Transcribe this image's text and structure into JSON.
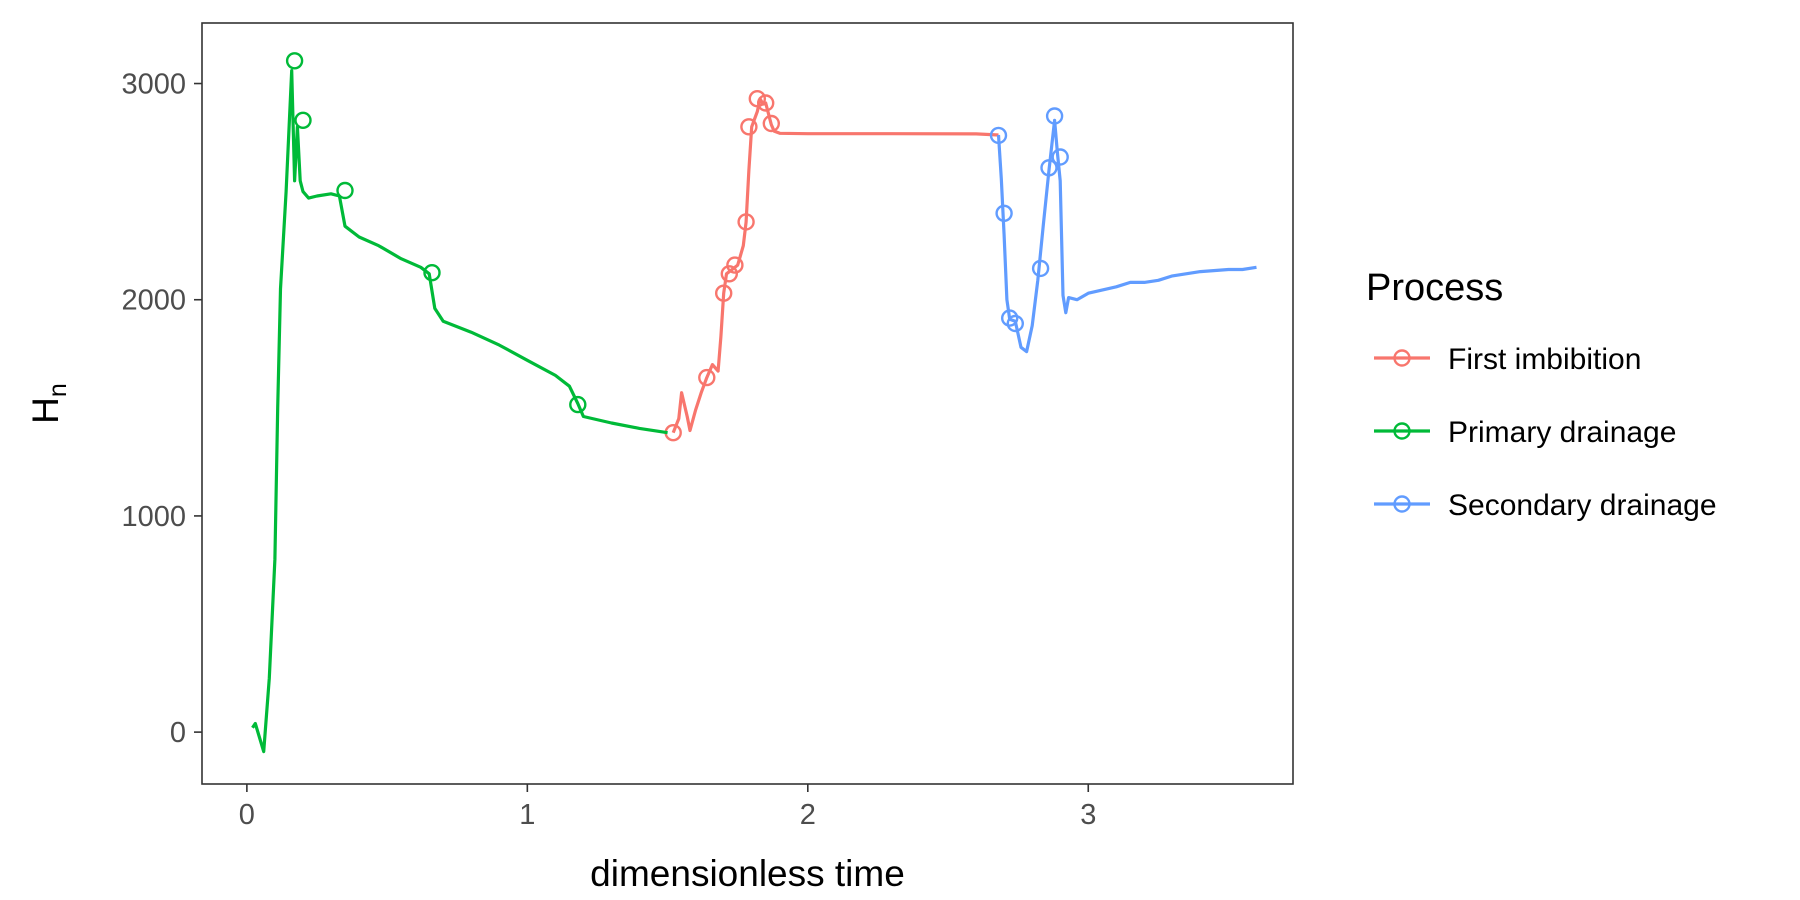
{
  "chart_data": {
    "type": "line",
    "title": "",
    "xlabel": "dimensionless time",
    "ylabel": {
      "main": "H",
      "sub": "n"
    },
    "xlim": [
      -0.16,
      3.73
    ],
    "ylim": [
      -240,
      3280
    ],
    "x_ticks": [
      0,
      1,
      2,
      3
    ],
    "y_ticks": [
      0,
      1000,
      2000,
      3000
    ],
    "grid": false,
    "legend": {
      "title": "Process",
      "position": "right"
    },
    "series": [
      {
        "name": "First imbibition",
        "color": "#F8766D",
        "line": [
          [
            1.52,
            1385
          ],
          [
            1.54,
            1450
          ],
          [
            1.55,
            1570
          ],
          [
            1.57,
            1460
          ],
          [
            1.58,
            1395
          ],
          [
            1.6,
            1490
          ],
          [
            1.62,
            1570
          ],
          [
            1.64,
            1640
          ],
          [
            1.66,
            1700
          ],
          [
            1.68,
            1670
          ],
          [
            1.69,
            1830
          ],
          [
            1.7,
            2030
          ],
          [
            1.71,
            2120
          ],
          [
            1.73,
            2140
          ],
          [
            1.75,
            2160
          ],
          [
            1.77,
            2250
          ],
          [
            1.78,
            2360
          ],
          [
            1.79,
            2600
          ],
          [
            1.8,
            2800
          ],
          [
            1.82,
            2870
          ],
          [
            1.83,
            2930
          ],
          [
            1.84,
            2905
          ],
          [
            1.85,
            2910
          ],
          [
            1.86,
            2860
          ],
          [
            1.87,
            2810
          ],
          [
            1.88,
            2780
          ],
          [
            1.9,
            2770
          ],
          [
            2.0,
            2768
          ],
          [
            2.3,
            2768
          ],
          [
            2.6,
            2767
          ],
          [
            2.68,
            2762
          ]
        ],
        "markers": [
          [
            1.52,
            1385
          ],
          [
            1.64,
            1640
          ],
          [
            1.7,
            2030
          ],
          [
            1.72,
            2120
          ],
          [
            1.74,
            2160
          ],
          [
            1.78,
            2360
          ],
          [
            1.79,
            2800
          ],
          [
            1.82,
            2930
          ],
          [
            1.85,
            2910
          ],
          [
            1.87,
            2815
          ]
        ]
      },
      {
        "name": "Primary drainage",
        "color": "#00BA38",
        "line": [
          [
            0.02,
            20
          ],
          [
            0.03,
            40
          ],
          [
            0.06,
            -90
          ],
          [
            0.08,
            250
          ],
          [
            0.1,
            800
          ],
          [
            0.11,
            1500
          ],
          [
            0.12,
            2050
          ],
          [
            0.14,
            2500
          ],
          [
            0.16,
            3060
          ],
          [
            0.17,
            2550
          ],
          [
            0.18,
            2800
          ],
          [
            0.19,
            2550
          ],
          [
            0.2,
            2500
          ],
          [
            0.22,
            2470
          ],
          [
            0.25,
            2480
          ],
          [
            0.3,
            2490
          ],
          [
            0.33,
            2480
          ],
          [
            0.35,
            2340
          ],
          [
            0.4,
            2290
          ],
          [
            0.47,
            2250
          ],
          [
            0.55,
            2190
          ],
          [
            0.62,
            2150
          ],
          [
            0.65,
            2120
          ],
          [
            0.67,
            1960
          ],
          [
            0.7,
            1900
          ],
          [
            0.8,
            1850
          ],
          [
            0.9,
            1790
          ],
          [
            1.0,
            1720
          ],
          [
            1.1,
            1650
          ],
          [
            1.15,
            1600
          ],
          [
            1.18,
            1520
          ],
          [
            1.2,
            1460
          ],
          [
            1.3,
            1430
          ],
          [
            1.4,
            1405
          ],
          [
            1.5,
            1385
          ]
        ],
        "markers": [
          [
            0.17,
            3105
          ],
          [
            0.2,
            2830
          ],
          [
            0.35,
            2505
          ],
          [
            0.66,
            2125
          ],
          [
            1.18,
            1515
          ]
        ]
      },
      {
        "name": "Secondary drainage",
        "color": "#619CFF",
        "line": [
          [
            2.68,
            2762
          ],
          [
            2.69,
            2560
          ],
          [
            2.7,
            2300
          ],
          [
            2.71,
            2000
          ],
          [
            2.72,
            1910
          ],
          [
            2.74,
            1900
          ],
          [
            2.76,
            1780
          ],
          [
            2.78,
            1760
          ],
          [
            2.8,
            1880
          ],
          [
            2.82,
            2090
          ],
          [
            2.84,
            2350
          ],
          [
            2.86,
            2600
          ],
          [
            2.88,
            2830
          ],
          [
            2.89,
            2680
          ],
          [
            2.9,
            2550
          ],
          [
            2.91,
            2020
          ],
          [
            2.92,
            1940
          ],
          [
            2.93,
            2010
          ],
          [
            2.96,
            2000
          ],
          [
            3.0,
            2030
          ],
          [
            3.1,
            2060
          ],
          [
            3.15,
            2080
          ],
          [
            3.2,
            2080
          ],
          [
            3.25,
            2090
          ],
          [
            3.3,
            2110
          ],
          [
            3.4,
            2130
          ],
          [
            3.5,
            2140
          ],
          [
            3.55,
            2140
          ],
          [
            3.6,
            2150
          ]
        ],
        "markers": [
          [
            2.68,
            2760
          ],
          [
            2.7,
            2400
          ],
          [
            2.72,
            1915
          ],
          [
            2.74,
            1890
          ],
          [
            2.83,
            2145
          ],
          [
            2.86,
            2610
          ],
          [
            2.88,
            2850
          ],
          [
            2.9,
            2660
          ]
        ]
      }
    ]
  }
}
